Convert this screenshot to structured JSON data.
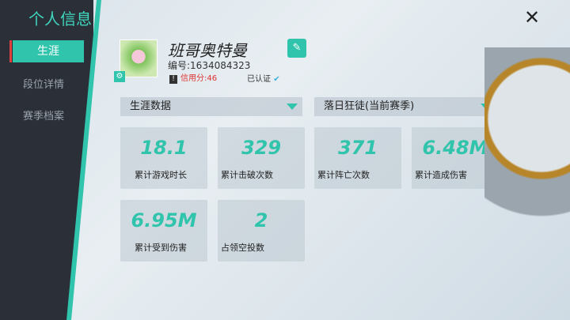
{
  "sidebar": {
    "title": "个人信息",
    "items": [
      {
        "label": "生涯"
      },
      {
        "label": "段位详情"
      },
      {
        "label": "赛季档案"
      }
    ]
  },
  "profile": {
    "name": "班哥奥特曼",
    "uid": "编号:1634084323",
    "credit": "信用分:46",
    "verified": "已认证"
  },
  "filters": {
    "left": "生涯数据",
    "right": "落日狂徒(当前赛季)"
  },
  "stats": [
    {
      "value": "18.1",
      "label": "累计游戏时长"
    },
    {
      "value": "329",
      "label": "累计击破次数"
    },
    {
      "value": "371",
      "label": "累计阵亡次数"
    },
    {
      "value": "6.48M",
      "label": "累计造成伤害"
    },
    {
      "value": "6.95M",
      "label": "累计受到伤害"
    },
    {
      "value": "2",
      "label": "占领空投数"
    }
  ],
  "colors": {
    "accent": "#2fc4ab",
    "credit": "#dd3333"
  }
}
